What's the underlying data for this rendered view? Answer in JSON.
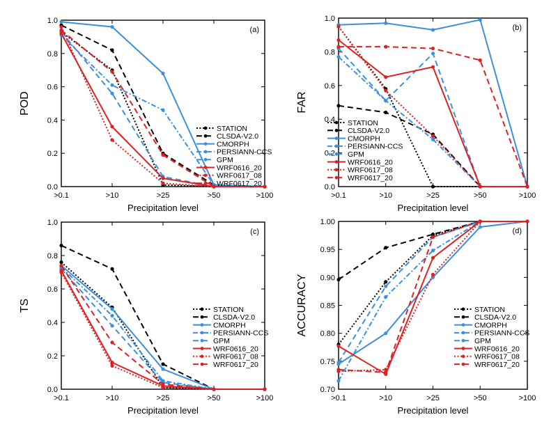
{
  "series_styles": [
    {
      "name": "STATION",
      "color": "#000000",
      "dash": "2,2.5"
    },
    {
      "name": "CLSDA-V2.0",
      "color": "#000000",
      "dash": "8,5"
    },
    {
      "name": "CMORPH",
      "color": "#3a8fde",
      "dash": ""
    },
    {
      "name": "PERSIANN-CCS",
      "color": "#3a8fde",
      "dash": "7,3,2,3"
    },
    {
      "name": "GPM",
      "color": "#3a8fde",
      "dash": "8,5"
    },
    {
      "name": "WRF0616_20",
      "color": "#e02020",
      "dash": ""
    },
    {
      "name": "WRF0617_08",
      "color": "#e02020",
      "dash": "2,2.5"
    },
    {
      "name": "WRF0617_20",
      "color": "#e02020",
      "dash": "8,5"
    }
  ],
  "chart_data": [
    {
      "type": "line",
      "panel": "(a)",
      "ylabel": "POD",
      "xlabel": "Precipitation level",
      "categories": [
        ">0.1",
        ">10",
        ">25",
        ">50",
        ">100"
      ],
      "ylim": [
        0,
        1
      ],
      "yticks": [
        "0.0",
        "0.2",
        "0.4",
        "0.6",
        "0.8",
        "1.0"
      ],
      "legend_position": "right-middle",
      "series": [
        {
          "name": "STATION",
          "values": [
            0.93,
            0.7,
            0.01,
            0.0,
            0.0
          ]
        },
        {
          "name": "CLSDA-V2.0",
          "values": [
            0.97,
            0.82,
            0.2,
            0.01,
            0.0
          ]
        },
        {
          "name": "CMORPH",
          "values": [
            0.99,
            0.96,
            0.68,
            0.01,
            0.0
          ]
        },
        {
          "name": "PERSIANN-CCS",
          "values": [
            0.91,
            0.61,
            0.46,
            0.01,
            0.0
          ]
        },
        {
          "name": "GPM",
          "values": [
            0.93,
            0.56,
            0.06,
            0.0,
            0.0
          ]
        },
        {
          "name": "WRF0616_20",
          "values": [
            0.92,
            0.36,
            0.05,
            0.0,
            0.0
          ]
        },
        {
          "name": "WRF0617_08",
          "values": [
            0.96,
            0.28,
            0.02,
            0.0,
            0.0
          ]
        },
        {
          "name": "WRF0617_20",
          "values": [
            0.94,
            0.69,
            0.19,
            0.0,
            0.0
          ]
        }
      ]
    },
    {
      "type": "line",
      "panel": "(b)",
      "ylabel": "FAR",
      "xlabel": "Precipitation level",
      "categories": [
        ">0.1",
        ">10",
        ">25",
        ">50",
        ">100"
      ],
      "ylim": [
        0,
        1
      ],
      "yticks": [
        "0.0",
        "0.2",
        "0.4",
        "0.6",
        "0.8",
        "1.0"
      ],
      "legend_position": "bottom-left",
      "series": [
        {
          "name": "STATION",
          "values": [
            0.95,
            0.58,
            0.0,
            0.0,
            0.0
          ]
        },
        {
          "name": "CLSDA-V2.0",
          "values": [
            0.48,
            0.44,
            0.31,
            0.0,
            0.0
          ]
        },
        {
          "name": "CMORPH",
          "values": [
            0.96,
            0.97,
            0.93,
            0.99,
            0.0
          ]
        },
        {
          "name": "PERSIANN-CCS",
          "values": [
            0.77,
            0.51,
            0.28,
            0.0,
            0.0
          ]
        },
        {
          "name": "GPM",
          "values": [
            0.82,
            0.51,
            0.79,
            0.0,
            0.0
          ]
        },
        {
          "name": "WRF0616_20",
          "values": [
            0.87,
            0.65,
            0.71,
            0.0,
            0.0
          ]
        },
        {
          "name": "WRF0617_08",
          "values": [
            0.95,
            0.57,
            0.3,
            0.0,
            0.0
          ]
        },
        {
          "name": "WRF0617_20",
          "values": [
            0.83,
            0.83,
            0.82,
            0.75,
            0.0
          ]
        }
      ]
    },
    {
      "type": "line",
      "panel": "(c)",
      "ylabel": "TS",
      "xlabel": "Precipitation level",
      "categories": [
        ">0.1",
        ">10",
        ">25",
        ">50",
        ">100"
      ],
      "ylim": [
        0,
        1
      ],
      "yticks": [
        "0.0",
        "0.2",
        "0.4",
        "0.6",
        "0.8",
        "1.0"
      ],
      "legend_position": "right-middle",
      "series": [
        {
          "name": "STATION",
          "values": [
            0.76,
            0.49,
            0.01,
            0.0,
            0.0
          ]
        },
        {
          "name": "CLSDA-V2.0",
          "values": [
            0.86,
            0.72,
            0.15,
            0.0,
            0.0
          ]
        },
        {
          "name": "CMORPH",
          "values": [
            0.74,
            0.48,
            0.12,
            0.0,
            0.0
          ]
        },
        {
          "name": "PERSIANN-CCS",
          "values": [
            0.73,
            0.44,
            0.05,
            0.0,
            0.0
          ]
        },
        {
          "name": "GPM",
          "values": [
            0.72,
            0.38,
            0.04,
            0.0,
            0.0
          ]
        },
        {
          "name": "WRF0616_20",
          "values": [
            0.71,
            0.16,
            0.02,
            0.0,
            0.0
          ]
        },
        {
          "name": "WRF0617_08",
          "values": [
            0.7,
            0.14,
            0.01,
            0.0,
            0.0
          ]
        },
        {
          "name": "WRF0617_20",
          "values": [
            0.74,
            0.28,
            0.03,
            0.0,
            0.0
          ]
        }
      ]
    },
    {
      "type": "line",
      "panel": "(d)",
      "ylabel": "ACCURACY",
      "xlabel": "Precipitation level",
      "categories": [
        ">0.1",
        ">10",
        ">25",
        ">50",
        ">100"
      ],
      "ylim": [
        0.7,
        1.0
      ],
      "yticks": [
        "0.70",
        "0.75",
        "0.80",
        "0.85",
        "0.90",
        "0.95",
        "1.00"
      ],
      "legend_position": "right-middle",
      "series": [
        {
          "name": "STATION",
          "values": [
            0.78,
            0.892,
            0.975,
            1.0,
            1.0
          ]
        },
        {
          "name": "CLSDA-V2.0",
          "values": [
            0.896,
            0.953,
            0.977,
            1.0,
            1.0
          ]
        },
        {
          "name": "CMORPH",
          "values": [
            0.745,
            0.8,
            0.9,
            0.99,
            1.0
          ]
        },
        {
          "name": "PERSIANN-CCS",
          "values": [
            0.715,
            0.865,
            0.948,
            1.0,
            1.0
          ]
        },
        {
          "name": "GPM",
          "values": [
            0.748,
            0.884,
            0.972,
            1.0,
            1.0
          ]
        },
        {
          "name": "WRF0616_20",
          "values": [
            0.777,
            0.727,
            0.935,
            1.0,
            1.0
          ]
        },
        {
          "name": "WRF0617_08",
          "values": [
            0.732,
            0.735,
            0.905,
            1.0,
            1.0
          ]
        },
        {
          "name": "WRF0617_20",
          "values": [
            0.735,
            0.73,
            0.972,
            1.0,
            1.0
          ]
        }
      ]
    }
  ]
}
